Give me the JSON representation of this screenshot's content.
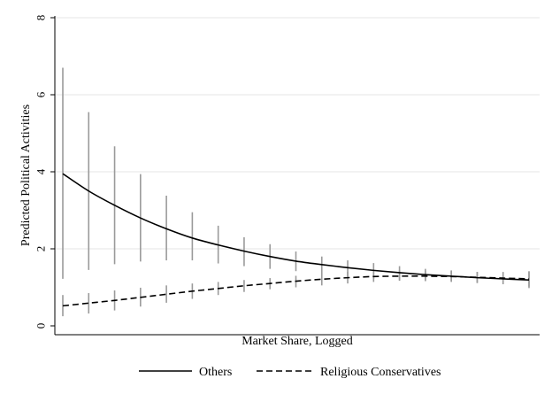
{
  "chart_data": {
    "type": "line",
    "title": "",
    "xlabel": "Market Share, Logged",
    "ylabel": "Predicted Political Activities",
    "ylim": [
      0,
      8
    ],
    "yticks": [
      0,
      2,
      4,
      6,
      8
    ],
    "grid": true,
    "legend_position": "bottom",
    "x": [
      1,
      2,
      3,
      4,
      5,
      6,
      7,
      8,
      9,
      10,
      11,
      12,
      13,
      14,
      15,
      16,
      17,
      18,
      19
    ],
    "series": [
      {
        "name": "Others",
        "style": "solid",
        "values": [
          3.95,
          3.5,
          3.13,
          2.8,
          2.52,
          2.28,
          2.1,
          1.94,
          1.8,
          1.68,
          1.59,
          1.51,
          1.44,
          1.38,
          1.33,
          1.29,
          1.25,
          1.22,
          1.19
        ],
        "ci_low": [
          1.22,
          1.45,
          1.6,
          1.67,
          1.7,
          1.7,
          1.62,
          1.55,
          1.48,
          1.42,
          1.35,
          1.28,
          1.22,
          1.18,
          1.16,
          1.14,
          1.11,
          1.09,
          0.98
        ],
        "ci_high": [
          6.7,
          5.55,
          4.66,
          3.94,
          3.38,
          2.95,
          2.6,
          2.3,
          2.12,
          1.93,
          1.8,
          1.7,
          1.63,
          1.55,
          1.48,
          1.44,
          1.4,
          1.38,
          1.4
        ]
      },
      {
        "name": "Religious Conservatives",
        "style": "dashed",
        "values": [
          0.52,
          0.59,
          0.66,
          0.74,
          0.82,
          0.9,
          0.97,
          1.04,
          1.1,
          1.16,
          1.21,
          1.25,
          1.28,
          1.29,
          1.29,
          1.28,
          1.26,
          1.24,
          1.22
        ],
        "ci_low": [
          0.25,
          0.32,
          0.4,
          0.5,
          0.6,
          0.7,
          0.8,
          0.88,
          0.95,
          1.0,
          1.05,
          1.1,
          1.14,
          1.17,
          1.18,
          1.16,
          1.12,
          1.08,
          1.02
        ],
        "ci_high": [
          0.8,
          0.85,
          0.92,
          0.99,
          1.05,
          1.1,
          1.14,
          1.19,
          1.24,
          1.3,
          1.36,
          1.4,
          1.43,
          1.44,
          1.43,
          1.42,
          1.4,
          1.4,
          1.42
        ]
      }
    ]
  }
}
